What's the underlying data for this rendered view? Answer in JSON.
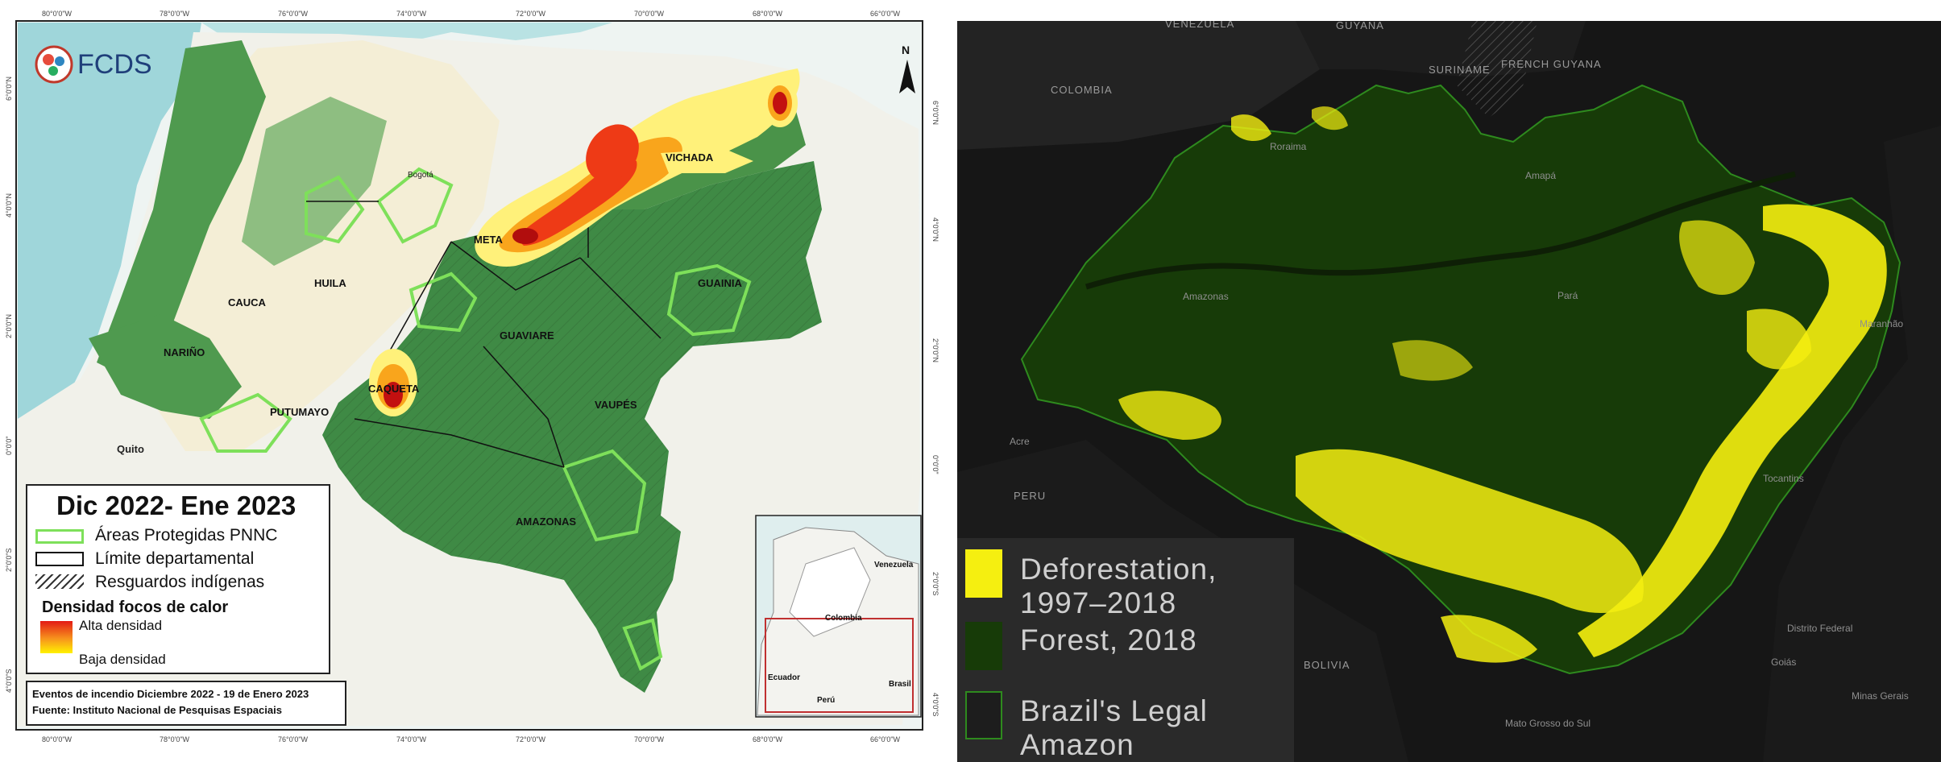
{
  "left_map": {
    "logo_text": "FCDS",
    "north_letter": "N",
    "legend": {
      "title": "Dic 2022- Ene 2023",
      "items": [
        {
          "label": "Áreas Protegidas PNNC",
          "color": "#7ee05a"
        },
        {
          "label": "Límite departamental",
          "color": "#111111"
        },
        {
          "label": "Resguardos indígenas",
          "color": "#333333"
        }
      ],
      "density_title": "Densidad focos de calor",
      "density_high": "Alta densidad",
      "density_low": "Baja densidad"
    },
    "source_line1": "Eventos de incendio Diciembre 2022 - 19 de Enero 2023",
    "source_line2": "Fuente: Instituto Nacional de Pesquisas Espaciais",
    "departments": [
      "VICHADA",
      "META",
      "GUAINIA",
      "HUILA",
      "CAUCA",
      "GUAVIARE",
      "NARIÑO",
      "CAQUETA",
      "VAUPÉS",
      "PUTUMAYO",
      "AMAZONAS"
    ],
    "places": [
      "Bogotá",
      "Quito"
    ],
    "lon_ticks": [
      "80°0'0\"W",
      "78°0'0\"W",
      "76°0'0\"W",
      "74°0'0\"W",
      "72°0'0\"W",
      "70°0'0\"W",
      "68°0'0\"W",
      "66°0'0\"W"
    ],
    "lat_ticks": [
      "6°0'0\"N",
      "4°0'0\"N",
      "2°0'0\"N",
      "0°0'0\"",
      "2°0'0\"S",
      "4°0'0\"S"
    ],
    "inset_labels": [
      "Venezuela",
      "Colombia",
      "Ecuador",
      "Perú",
      "Brasil"
    ]
  },
  "right_map": {
    "countries": [
      "VENEZUELA",
      "GUYANA",
      "SURINAME",
      "FRENCH GUYANA",
      "COLOMBIA",
      "PERU",
      "BOLIVIA"
    ],
    "states": [
      "Roraima",
      "Amapá",
      "Amazonas",
      "Pará",
      "Acre",
      "Tocantins",
      "Maranhão",
      "Goiás",
      "Distrito Federal",
      "Mato Grosso do Sul",
      "Minas Gerais"
    ],
    "legend": [
      {
        "label": "Deforestation, 1997–2018",
        "color": "#f5ef10"
      },
      {
        "label": "Forest, 2018",
        "color": "#173b08"
      },
      {
        "label": "Brazil's Legal Amazon",
        "color": "#1d1d1d"
      }
    ]
  }
}
